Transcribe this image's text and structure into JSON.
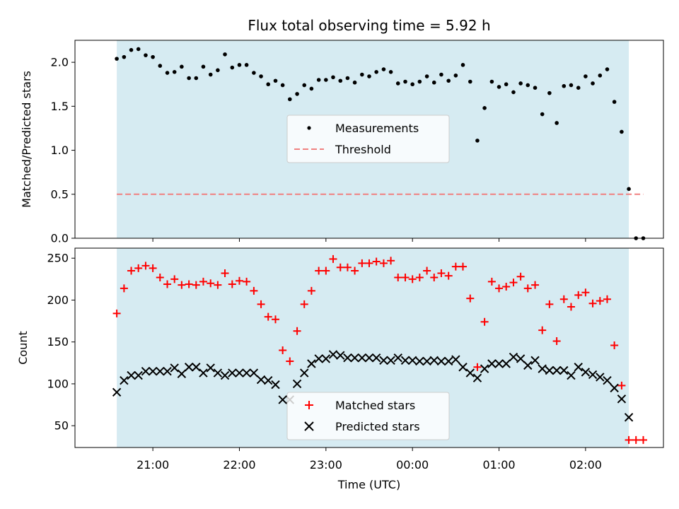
{
  "chart_data": [
    {
      "type": "scatter",
      "title": "Flux total observing time = 5.92 h",
      "xlabel": "",
      "ylabel": "Matched/Predicted stars",
      "ylim": [
        0,
        2.25
      ],
      "yticks": [
        "0.0",
        "0.5",
        "1.0",
        "1.5",
        "2.0"
      ],
      "x_range_hours": [
        20.1,
        26.9
      ],
      "shaded_span_hours": [
        20.583,
        26.5
      ],
      "shade_color": "#add8e6",
      "legend_position": "center",
      "series": [
        {
          "name": "Measurements",
          "marker": "dot",
          "color": "#000000",
          "points": [
            [
              20.583,
              2.04
            ],
            [
              20.667,
              2.06
            ],
            [
              20.75,
              2.14
            ],
            [
              20.833,
              2.15
            ],
            [
              20.917,
              2.08
            ],
            [
              21.0,
              2.06
            ],
            [
              21.083,
              1.96
            ],
            [
              21.167,
              1.88
            ],
            [
              21.25,
              1.89
            ],
            [
              21.333,
              1.95
            ],
            [
              21.417,
              1.82
            ],
            [
              21.5,
              1.82
            ],
            [
              21.583,
              1.95
            ],
            [
              21.667,
              1.86
            ],
            [
              21.75,
              1.91
            ],
            [
              21.833,
              2.09
            ],
            [
              21.917,
              1.94
            ],
            [
              22.0,
              1.97
            ],
            [
              22.083,
              1.97
            ],
            [
              22.167,
              1.88
            ],
            [
              22.25,
              1.84
            ],
            [
              22.333,
              1.75
            ],
            [
              22.417,
              1.79
            ],
            [
              22.5,
              1.74
            ],
            [
              22.583,
              1.58
            ],
            [
              22.667,
              1.64
            ],
            [
              22.75,
              1.74
            ],
            [
              22.833,
              1.7
            ],
            [
              22.917,
              1.8
            ],
            [
              23.0,
              1.8
            ],
            [
              23.083,
              1.83
            ],
            [
              23.167,
              1.79
            ],
            [
              23.25,
              1.82
            ],
            [
              23.333,
              1.77
            ],
            [
              23.417,
              1.86
            ],
            [
              23.5,
              1.84
            ],
            [
              23.583,
              1.89
            ],
            [
              23.667,
              1.92
            ],
            [
              23.75,
              1.89
            ],
            [
              23.833,
              1.76
            ],
            [
              23.917,
              1.78
            ],
            [
              24.0,
              1.75
            ],
            [
              24.083,
              1.78
            ],
            [
              24.167,
              1.84
            ],
            [
              24.25,
              1.77
            ],
            [
              24.333,
              1.86
            ],
            [
              24.417,
              1.79
            ],
            [
              24.5,
              1.85
            ],
            [
              24.583,
              1.97
            ],
            [
              24.667,
              1.78
            ],
            [
              24.75,
              1.11
            ],
            [
              24.833,
              1.48
            ],
            [
              24.917,
              1.78
            ],
            [
              25.0,
              1.72
            ],
            [
              25.083,
              1.75
            ],
            [
              25.167,
              1.66
            ],
            [
              25.25,
              1.76
            ],
            [
              25.333,
              1.74
            ],
            [
              25.417,
              1.71
            ],
            [
              25.5,
              1.41
            ],
            [
              25.583,
              1.65
            ],
            [
              25.667,
              1.31
            ],
            [
              25.75,
              1.73
            ],
            [
              25.833,
              1.74
            ],
            [
              25.917,
              1.71
            ],
            [
              26.0,
              1.84
            ],
            [
              26.083,
              1.76
            ],
            [
              26.167,
              1.85
            ],
            [
              26.25,
              1.92
            ],
            [
              26.333,
              1.55
            ],
            [
              26.417,
              1.21
            ],
            [
              26.5,
              0.56
            ],
            [
              26.583,
              0.0
            ],
            [
              26.667,
              0.0
            ]
          ]
        },
        {
          "name": "Threshold",
          "type": "line",
          "style": "dashed",
          "color": "#f08080",
          "points": [
            [
              20.583,
              0.5
            ],
            [
              26.667,
              0.5
            ]
          ]
        }
      ]
    },
    {
      "type": "scatter",
      "title": "",
      "xlabel": "Time (UTC)",
      "ylabel": "Count",
      "ylim": [
        24,
        262
      ],
      "yticks": [
        "50",
        "100",
        "150",
        "200",
        "250"
      ],
      "xticks": [
        "21:00",
        "22:00",
        "23:00",
        "00:00",
        "01:00",
        "02:00"
      ],
      "x_range_hours": [
        20.1,
        26.9
      ],
      "shaded_span_hours": [
        20.583,
        26.5
      ],
      "shade_color": "#add8e6",
      "legend_position": "lower center",
      "series": [
        {
          "name": "Matched stars",
          "marker": "plus",
          "color": "#ff0000",
          "points": [
            [
              20.583,
              184
            ],
            [
              20.667,
              214
            ],
            [
              20.75,
              235
            ],
            [
              20.833,
              238
            ],
            [
              20.917,
              241
            ],
            [
              21.0,
              238
            ],
            [
              21.083,
              227
            ],
            [
              21.167,
              219
            ],
            [
              21.25,
              225
            ],
            [
              21.333,
              218
            ],
            [
              21.417,
              219
            ],
            [
              21.5,
              218
            ],
            [
              21.583,
              222
            ],
            [
              21.667,
              220
            ],
            [
              21.75,
              218
            ],
            [
              21.833,
              232
            ],
            [
              21.917,
              219
            ],
            [
              22.0,
              223
            ],
            [
              22.083,
              222
            ],
            [
              22.167,
              211
            ],
            [
              22.25,
              195
            ],
            [
              22.333,
              180
            ],
            [
              22.417,
              177
            ],
            [
              22.5,
              140
            ],
            [
              22.583,
              127
            ],
            [
              22.667,
              163
            ],
            [
              22.75,
              195
            ],
            [
              22.833,
              211
            ],
            [
              22.917,
              235
            ],
            [
              23.0,
              235
            ],
            [
              23.083,
              249
            ],
            [
              23.167,
              239
            ],
            [
              23.25,
              239
            ],
            [
              23.333,
              235
            ],
            [
              23.417,
              244
            ],
            [
              23.5,
              244
            ],
            [
              23.583,
              246
            ],
            [
              23.667,
              244
            ],
            [
              23.75,
              247
            ],
            [
              23.833,
              227
            ],
            [
              23.917,
              227
            ],
            [
              24.0,
              225
            ],
            [
              24.083,
              227
            ],
            [
              24.167,
              235
            ],
            [
              24.25,
              227
            ],
            [
              24.333,
              232
            ],
            [
              24.417,
              229
            ],
            [
              24.5,
              240
            ],
            [
              24.583,
              240
            ],
            [
              24.667,
              202
            ],
            [
              24.75,
              120
            ],
            [
              24.833,
              174
            ],
            [
              24.917,
              222
            ],
            [
              25.0,
              214
            ],
            [
              25.083,
              216
            ],
            [
              25.167,
              221
            ],
            [
              25.25,
              228
            ],
            [
              25.333,
              214
            ],
            [
              25.417,
              218
            ],
            [
              25.5,
              164
            ],
            [
              25.583,
              195
            ],
            [
              25.667,
              151
            ],
            [
              25.75,
              201
            ],
            [
              25.833,
              192
            ],
            [
              25.917,
              206
            ],
            [
              26.0,
              209
            ],
            [
              26.083,
              196
            ],
            [
              26.167,
              199
            ],
            [
              26.25,
              201
            ],
            [
              26.333,
              146
            ],
            [
              26.417,
              98
            ],
            [
              26.5,
              33
            ],
            [
              26.583,
              33
            ],
            [
              26.667,
              33
            ]
          ]
        },
        {
          "name": "Predicted stars",
          "marker": "x",
          "color": "#000000",
          "points": [
            [
              20.583,
              90
            ],
            [
              20.667,
              104
            ],
            [
              20.75,
              110
            ],
            [
              20.833,
              110
            ],
            [
              20.917,
              115
            ],
            [
              21.0,
              115
            ],
            [
              21.083,
              115
            ],
            [
              21.167,
              115
            ],
            [
              21.25,
              119
            ],
            [
              21.333,
              112
            ],
            [
              21.417,
              120
            ],
            [
              21.5,
              120
            ],
            [
              21.583,
              113
            ],
            [
              21.667,
              119
            ],
            [
              21.75,
              113
            ],
            [
              21.833,
              110
            ],
            [
              21.917,
              113
            ],
            [
              22.0,
              113
            ],
            [
              22.083,
              113
            ],
            [
              22.167,
              113
            ],
            [
              22.25,
              105
            ],
            [
              22.333,
              104
            ],
            [
              22.417,
              99
            ],
            [
              22.5,
              81
            ],
            [
              22.583,
              81
            ],
            [
              22.667,
              100
            ],
            [
              22.75,
              113
            ],
            [
              22.833,
              124
            ],
            [
              22.917,
              130
            ],
            [
              23.0,
              130
            ],
            [
              23.083,
              135
            ],
            [
              23.167,
              134
            ],
            [
              23.25,
              131
            ],
            [
              23.333,
              131
            ],
            [
              23.417,
              131
            ],
            [
              23.5,
              131
            ],
            [
              23.583,
              131
            ],
            [
              23.667,
              128
            ],
            [
              23.75,
              128
            ],
            [
              23.833,
              131
            ],
            [
              23.917,
              128
            ],
            [
              24.0,
              128
            ],
            [
              24.083,
              127
            ],
            [
              24.167,
              127
            ],
            [
              24.25,
              128
            ],
            [
              24.333,
              127
            ],
            [
              24.417,
              127
            ],
            [
              24.5,
              129
            ],
            [
              24.583,
              120
            ],
            [
              24.667,
              113
            ],
            [
              24.75,
              107
            ],
            [
              24.833,
              118
            ],
            [
              24.917,
              124
            ],
            [
              25.0,
              124
            ],
            [
              25.083,
              124
            ],
            [
              25.167,
              132
            ],
            [
              25.25,
              130
            ],
            [
              25.333,
              122
            ],
            [
              25.417,
              128
            ],
            [
              25.5,
              118
            ],
            [
              25.583,
              116
            ],
            [
              25.667,
              116
            ],
            [
              25.75,
              116
            ],
            [
              25.833,
              110
            ],
            [
              25.917,
              120
            ],
            [
              26.0,
              114
            ],
            [
              26.083,
              111
            ],
            [
              26.167,
              108
            ],
            [
              26.25,
              104
            ],
            [
              26.333,
              95
            ],
            [
              26.417,
              82
            ],
            [
              26.5,
              60
            ]
          ]
        }
      ]
    }
  ]
}
